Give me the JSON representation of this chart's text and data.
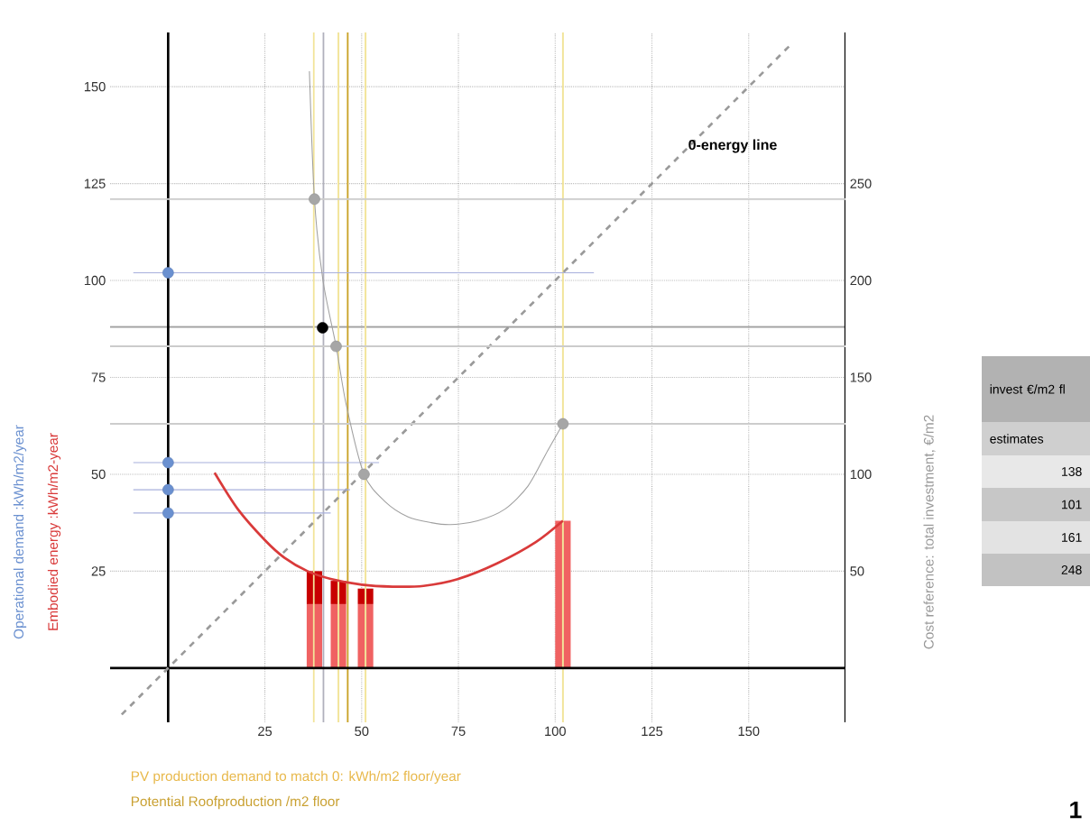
{
  "chart_data": {
    "type": "line",
    "xlabel": "PV production demand to match 0:   kWh/m2 floor/year",
    "y2label": "Cost reference: total investment, €/m2",
    "annotations": [
      "Potential Roofproduction /m2 floor",
      "0-energy line",
      "invest €/m2 fl",
      "estimates",
      "138",
      "101",
      "161",
      "248",
      "1"
    ],
    "xlim": [
      -15,
      175
    ],
    "ylim": [
      -14,
      164
    ],
    "y2lim": [
      -28,
      328
    ],
    "xticks": [
      25,
      50,
      75,
      100,
      125,
      150
    ],
    "yticks": [
      25,
      50,
      75,
      100,
      125,
      150
    ],
    "y2ticks": [
      50,
      100,
      150,
      200,
      250
    ],
    "grid": true,
    "stacked": true,
    "ref_lines": [
      {
        "axis": "y",
        "value": 88,
        "color": "#a0a0a0"
      },
      {
        "axis": "y2",
        "value": 242,
        "color": "#cccccc"
      },
      {
        "axis": "y2",
        "value": 166,
        "color": "#cccccc"
      },
      {
        "axis": "y2",
        "value": 126,
        "color": "#cccccc"
      },
      {
        "axis": "x",
        "value": 37.6,
        "color": "#f2e49a"
      },
      {
        "axis": "x",
        "value": 44,
        "color": "#f2e49a"
      },
      {
        "axis": "x",
        "value": 51,
        "color": "#f2e49a"
      },
      {
        "axis": "x",
        "value": 102,
        "color": "#f2e49a"
      },
      {
        "axis": "x",
        "value": 40.1,
        "color": "#b0b0bc"
      },
      {
        "axis": "x",
        "value": 46.4,
        "color": "#c9a227"
      }
    ],
    "series": [
      {
        "color": "#9a9a9a",
        "line_style": "dashed",
        "x": [
          -12,
          161
        ],
        "values": [
          -12,
          161
        ]
      },
      {
        "color": "#a8b0dc",
        "x": [
          -9,
          110
        ],
        "values": [
          102,
          102
        ]
      },
      {
        "color": "#a8b0dc",
        "x": [
          -9,
          54.5
        ],
        "values": [
          53,
          53
        ]
      },
      {
        "color": "#a8b0dc",
        "x": [
          -9,
          47
        ],
        "values": [
          46,
          46
        ]
      },
      {
        "color": "#a8b0dc",
        "x": [
          -9,
          42
        ],
        "values": [
          40,
          40
        ]
      },
      {
        "type": "bar",
        "color": "#f06262",
        "x": [
          37.8,
          44,
          51,
          102
        ],
        "values": [
          16.5,
          16.5,
          16.5,
          38
        ]
      },
      {
        "type": "bar",
        "color": "#c80000",
        "x": [
          37.8,
          44,
          51
        ],
        "values": [
          8.5,
          6,
          4
        ]
      },
      {
        "name": "Embodied energy :kWh/m2-year",
        "color": "#d93a3a",
        "x": [
          12,
          18,
          25,
          30,
          36,
          42,
          50,
          58,
          66,
          75,
          85,
          95,
          102
        ],
        "values": [
          50.4,
          41,
          33,
          28.5,
          25,
          23,
          21.5,
          21,
          21.2,
          23,
          27,
          32.5,
          38
        ]
      },
      {
        "axis": "y2",
        "color": "#a0a0a0",
        "x": [
          36.5,
          37.8,
          40,
          43.4,
          46,
          50.6,
          56,
          62,
          68,
          73,
          80,
          87,
          93,
          98,
          102
        ],
        "values": [
          308,
          242,
          200,
          166,
          136,
          100,
          86,
          78,
          75,
          74,
          76,
          82,
          94,
          112,
          126
        ]
      },
      {
        "type": "scatter",
        "axis": "y2",
        "color": "#a6a6a6",
        "x": [
          37.8,
          43.4,
          50.6,
          102
        ],
        "values": [
          242,
          166,
          100,
          126
        ]
      },
      {
        "type": "scatter",
        "color": "#000000",
        "x": [
          39.9
        ],
        "values": [
          87.8
        ]
      },
      {
        "type": "scatter",
        "name": "Operational demand :kWh/m2/year",
        "color": "#6a90d0",
        "x": [
          0,
          0,
          0,
          0
        ],
        "values": [
          102,
          53,
          46,
          40
        ]
      }
    ]
  }
}
